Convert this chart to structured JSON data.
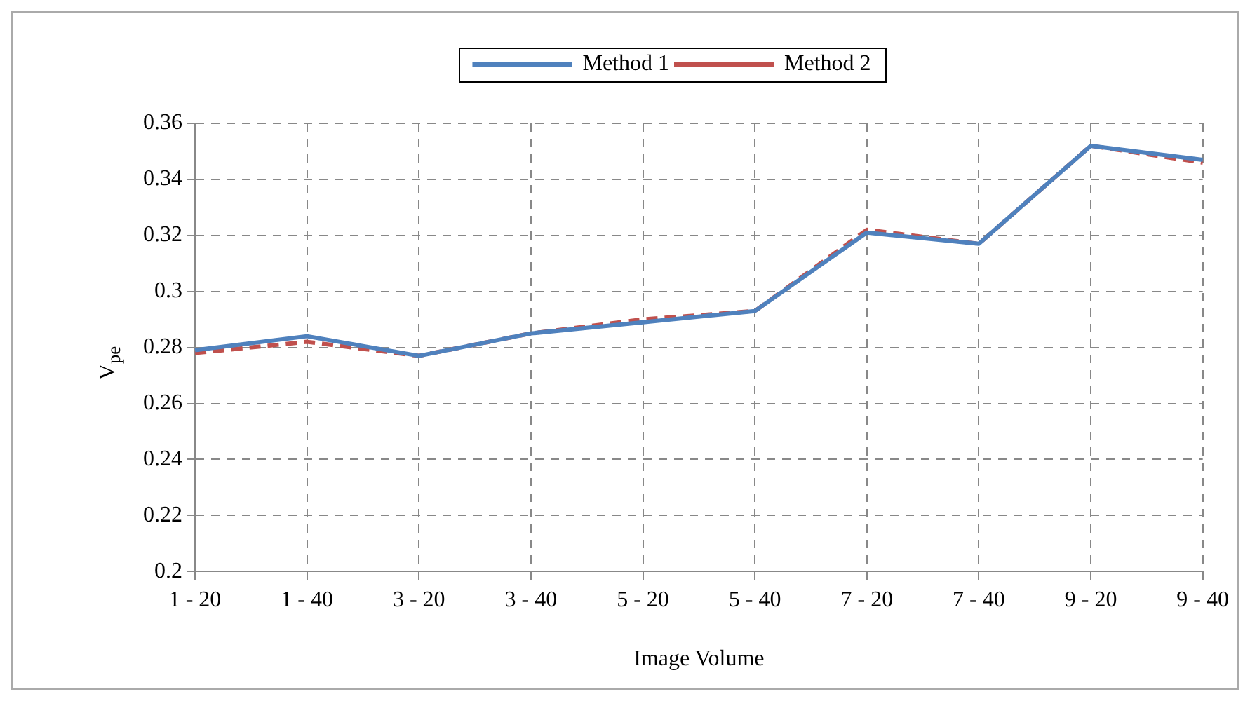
{
  "chart_data": {
    "type": "line",
    "xlabel": "Image Volume",
    "ylabel": "V$_{pe}$",
    "categories": [
      "1 - 20",
      "1 - 40",
      "3 - 20",
      "3 - 40",
      "5 - 20",
      "5 - 40",
      "7 - 20",
      "7 - 40",
      "9 - 20",
      "9 - 40"
    ],
    "series": [
      {
        "name": "Method 1",
        "color": "#4f81bd",
        "line_style": "solid",
        "values": [
          0.279,
          0.284,
          0.277,
          0.285,
          0.289,
          0.293,
          0.321,
          0.317,
          0.352,
          0.347
        ]
      },
      {
        "name": "Method 2",
        "color": "#c0504d",
        "line_style": "dashed",
        "values": [
          0.278,
          0.282,
          0.277,
          0.285,
          0.29,
          0.293,
          0.322,
          0.317,
          0.352,
          0.346
        ]
      }
    ],
    "ylim": [
      0.2,
      0.36
    ],
    "yticks": [
      0.2,
      0.22,
      0.24,
      0.26,
      0.28,
      0.3,
      0.32,
      0.34,
      0.36
    ],
    "grid": true,
    "legend": "top",
    "marker": "none"
  }
}
